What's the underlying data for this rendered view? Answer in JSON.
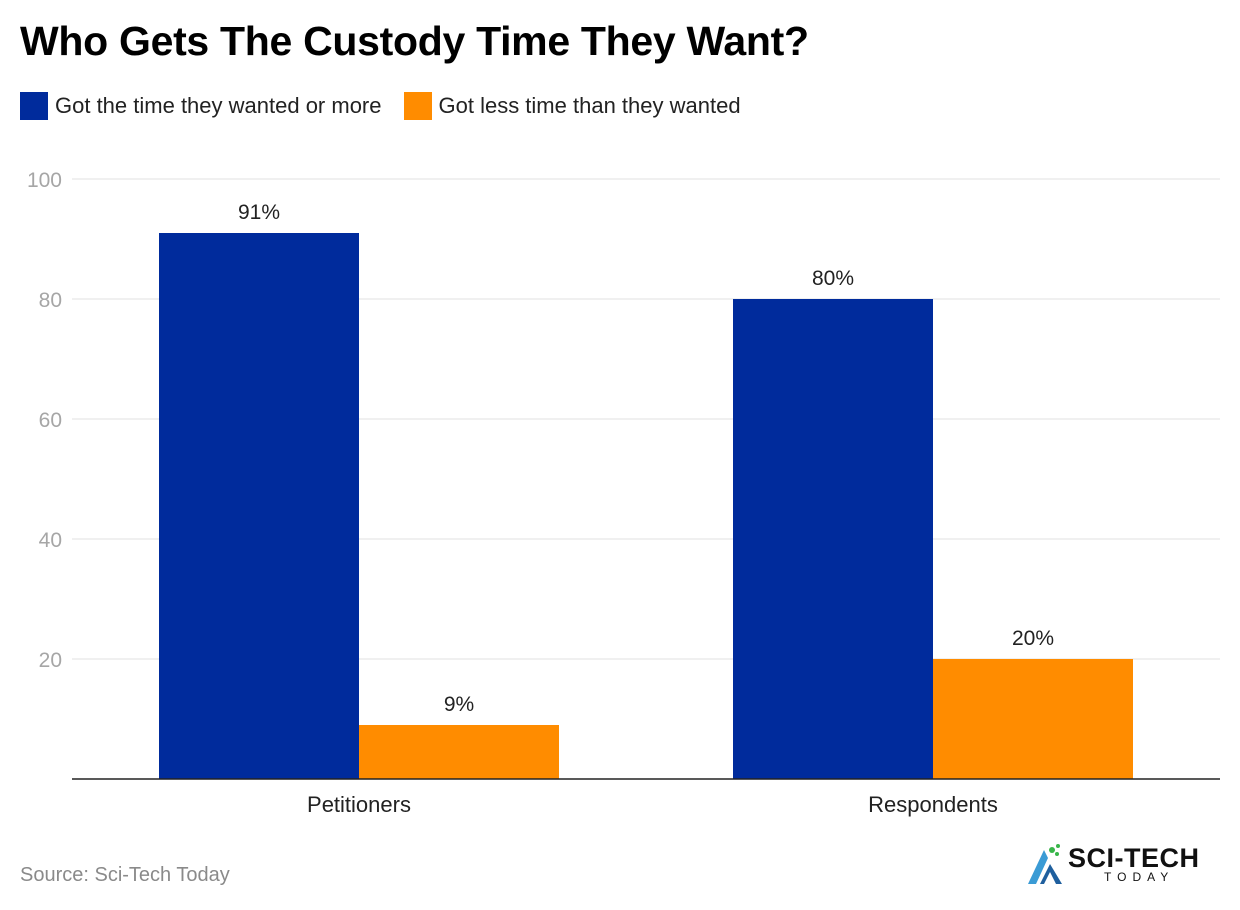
{
  "chart_data": {
    "type": "bar",
    "title": "Who Gets The Custody Time They Want?",
    "categories": [
      "Petitioners",
      "Respondents"
    ],
    "series": [
      {
        "name": "Got the time they wanted or more",
        "values": [
          91,
          80
        ],
        "labels": [
          "91%",
          "80%"
        ],
        "color": "#002b9c"
      },
      {
        "name": "Got less time than they wanted",
        "values": [
          9,
          20
        ],
        "labels": [
          "9%",
          "20%"
        ],
        "color": "#ff8c00"
      }
    ],
    "ylim": [
      0,
      100
    ],
    "yticks": [
      20,
      40,
      60,
      80,
      100
    ],
    "xlabel": "",
    "ylabel": "",
    "grid": true,
    "legend": "top-left"
  },
  "source": "Source: Sci-Tech Today",
  "logo": {
    "main": "SCI-TECH",
    "sub": "TODAY"
  }
}
